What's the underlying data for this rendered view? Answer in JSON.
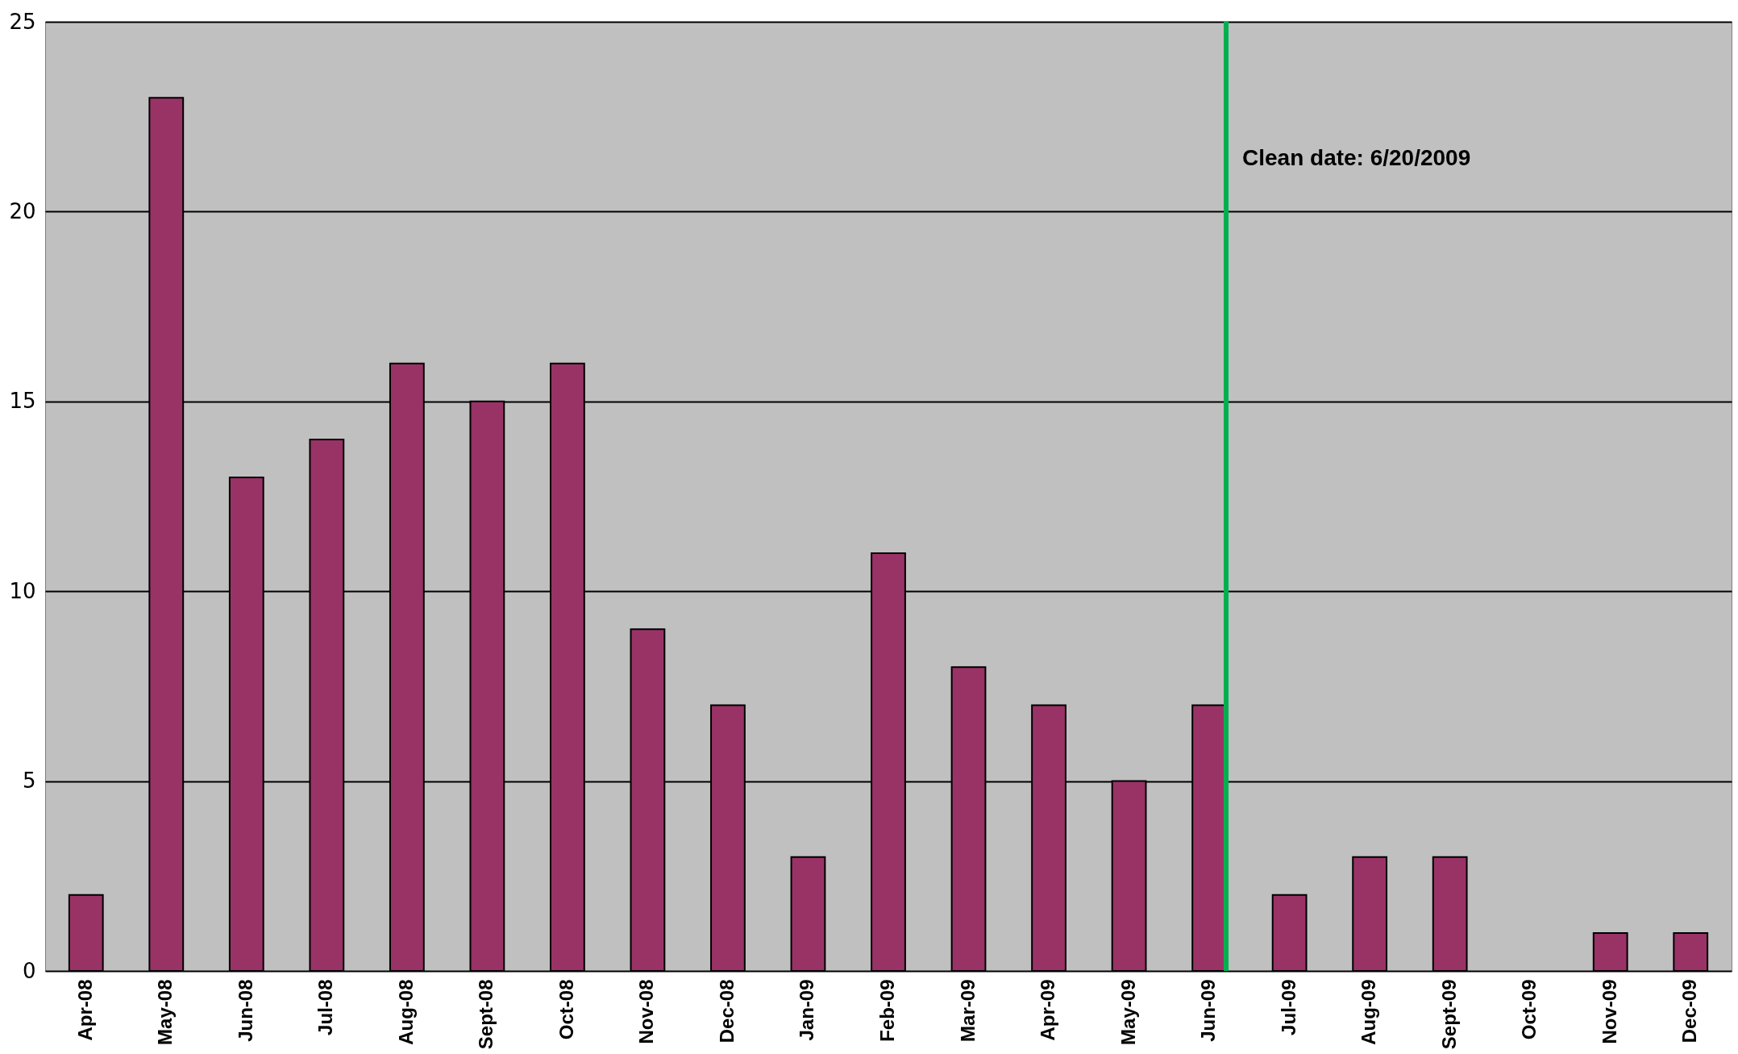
{
  "chart_data": {
    "type": "bar",
    "categories": [
      "Apr-08",
      "May-08",
      "Jun-08",
      "Jul-08",
      "Aug-08",
      "Sept-08",
      "Oct-08",
      "Nov-08",
      "Dec-08",
      "Jan-09",
      "Feb-09",
      "Mar-09",
      "Apr-09",
      "May-09",
      "Jun-09",
      "Jul-09",
      "Aug-09",
      "Sept-09",
      "Oct-09",
      "Nov-09",
      "Dec-09"
    ],
    "values": [
      2,
      23,
      13,
      14,
      16,
      15,
      16,
      9,
      7,
      3,
      11,
      8,
      7,
      5,
      7,
      2,
      3,
      3,
      0,
      1,
      1
    ],
    "color": "#993366",
    "ylim": [
      0,
      25
    ],
    "yticks": [
      0,
      5,
      10,
      15,
      20,
      25
    ],
    "grid": "y",
    "ref_lines": [
      {
        "axis": "x",
        "value": "Jun-09",
        "label": "Clean date: 6/20/2009",
        "color": "#00b050"
      }
    ]
  }
}
